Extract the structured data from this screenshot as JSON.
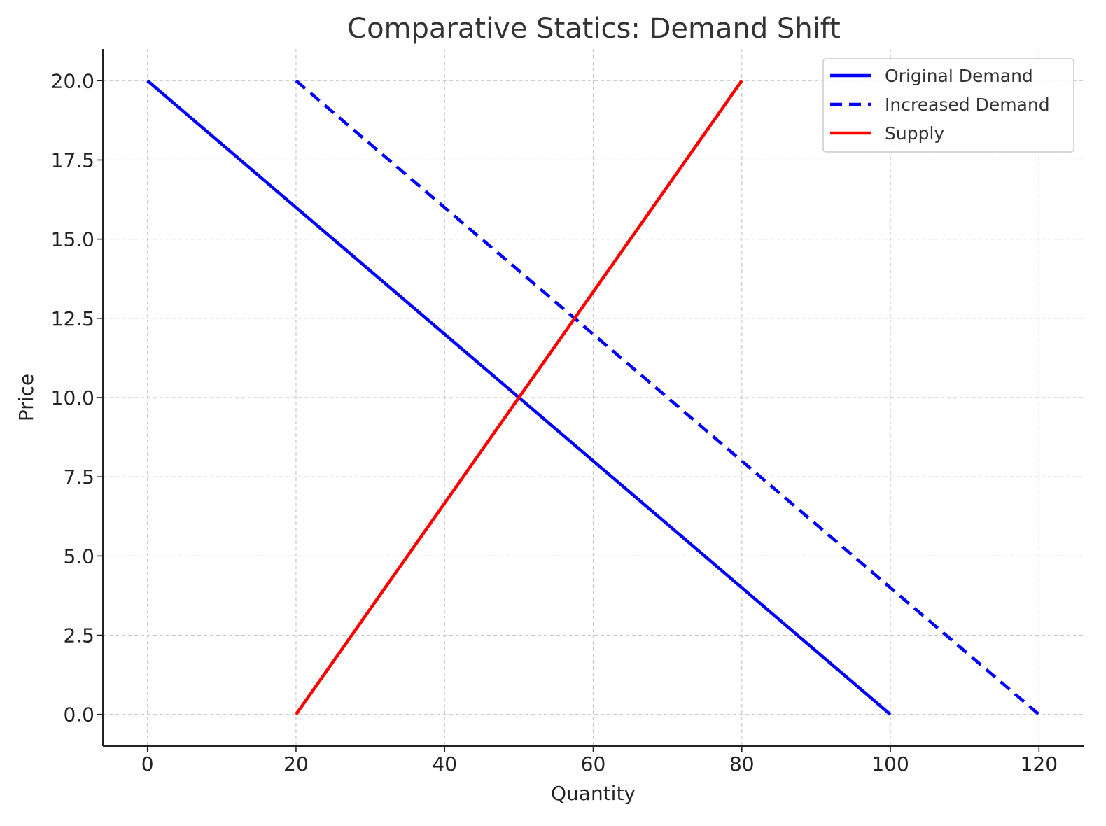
{
  "chart_data": {
    "type": "line",
    "title": "Comparative Statics: Demand Shift",
    "xlabel": "Quantity",
    "ylabel": "Price",
    "xlim": [
      -6,
      126
    ],
    "ylim": [
      -1,
      21
    ],
    "xticks": [
      0,
      20,
      40,
      60,
      80,
      100,
      120
    ],
    "xtick_labels": [
      "0",
      "20",
      "40",
      "60",
      "80",
      "100",
      "120"
    ],
    "yticks": [
      0,
      2.5,
      5,
      7.5,
      10,
      12.5,
      15,
      17.5,
      20
    ],
    "ytick_labels": [
      "0.0",
      "2.5",
      "5.0",
      "7.5",
      "10.0",
      "12.5",
      "15.0",
      "17.5",
      "20.0"
    ],
    "grid": true,
    "legend_position": "top-right",
    "series": [
      {
        "name": "Original Demand",
        "color": "#0000ff",
        "style": "solid",
        "x": [
          0,
          100
        ],
        "y": [
          20,
          0
        ]
      },
      {
        "name": "Increased Demand",
        "color": "#0000ff",
        "style": "dashed",
        "x": [
          20,
          120
        ],
        "y": [
          20,
          0
        ]
      },
      {
        "name": "Supply",
        "color": "#ff0000",
        "style": "solid",
        "x": [
          20,
          80
        ],
        "y": [
          0,
          20
        ]
      }
    ]
  }
}
